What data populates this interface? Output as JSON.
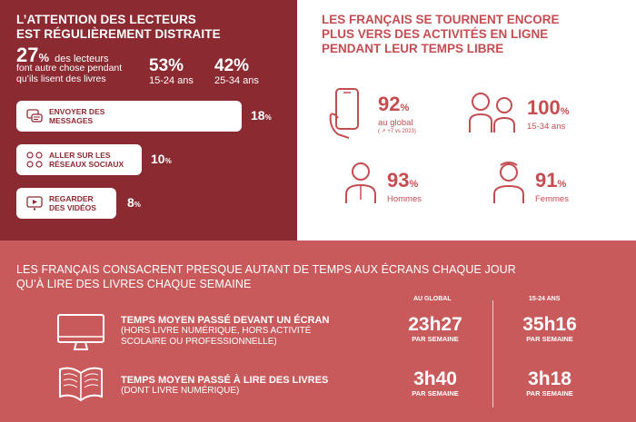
{
  "panel_left": {
    "title_line1": "L’ATTENTION DES LECTEURS",
    "title_line2": "EST RÉGULIÈREMENT DISTRAITE",
    "big_value": "27",
    "big_unit": "%",
    "big_desc_inline": "des lecteurs",
    "big_desc_rest": "font autre chose pendant qu’ils lisent des livres",
    "stat1_value": "53%",
    "stat1_label": "15-24 ans",
    "stat2_value": "42%",
    "stat2_label": "25-34 ans",
    "items": [
      {
        "line1": "ENVOYER DES",
        "line2": "MESSAGES",
        "value": "18",
        "unit": "%",
        "icon": "chat-icon"
      },
      {
        "line1": "ALLER SUR LES",
        "line2": "RÉSEAUX SOCIAUX",
        "value": "10",
        "unit": "%",
        "icon": "social-icon"
      },
      {
        "line1": "REGARDER",
        "line2": "DES VIDÉOS",
        "value": "8",
        "unit": "%",
        "icon": "video-icon"
      }
    ]
  },
  "panel_right": {
    "title_line1": "LES FRANÇAIS SE TOURNENT ENCORE",
    "title_line2": "PLUS VERS DES ACTIVITÉS EN LIGNE",
    "title_line3": "PENDANT LEUR TEMPS LIBRE",
    "stats": [
      {
        "value": "92",
        "unit": "%",
        "label": "au global",
        "note": "( ↗ +7 vs 2023)",
        "icon": "smartphone-icon"
      },
      {
        "value": "100",
        "unit": "%",
        "label": "15-34 ans",
        "icon": "young-people-icon"
      },
      {
        "value": "93",
        "unit": "%",
        "label": "Hommes",
        "icon": "man-icon"
      },
      {
        "value": "91",
        "unit": "%",
        "label": "Femmes",
        "icon": "woman-icon"
      }
    ]
  },
  "panel_bottom": {
    "title_line1": "LES FRANÇAIS CONSACRENT PRESQUE AUTANT DE TEMPS AUX ÉCRANS CHAQUE JOUR",
    "title_line2": "QU’À LIRE DES LIVRES CHAQUE SEMAINE",
    "col_global": "AU GLOBAL",
    "col_young": "15-24 ANS",
    "unit_label": "PAR SEMAINE",
    "rows": [
      {
        "title": "TEMPS MOYEN PASSÉ DEVANT UN ÉCRAN",
        "detail1": "(HORS LIVRE NUMÉRIQUE, HORS ACTIVITÉ",
        "detail2": "SCOLAIRE OU PROFESSIONNELLE)",
        "global": "23h27",
        "young": "35h16",
        "icon": "monitor-icon"
      },
      {
        "title": "TEMPS MOYEN PASSÉ À LIRE DES LIVRES",
        "detail1": "(DONT LIVRE NUMÉRIQUE)",
        "detail2": "",
        "global": "3h40",
        "young": "3h18",
        "icon": "open-book-icon"
      }
    ]
  },
  "colors": {
    "dark_red": "#8c2a32",
    "accent": "#c44d52",
    "bottom_bg": "#c95a5c"
  }
}
